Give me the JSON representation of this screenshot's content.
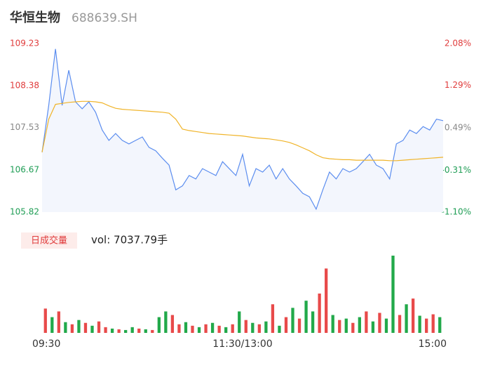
{
  "header": {
    "title": "华恒生物",
    "code": "688639.SH"
  },
  "chart_data": [
    {
      "type": "line",
      "x": [
        0,
        4,
        8,
        12,
        16,
        20,
        24,
        28,
        32,
        36,
        40,
        44,
        48,
        52,
        56,
        60,
        64,
        68,
        72,
        76,
        80,
        84,
        88,
        92,
        96,
        100,
        104,
        108,
        112,
        116,
        120,
        124,
        128,
        132,
        136,
        140,
        144,
        148,
        152,
        156,
        160,
        164,
        168,
        172,
        176,
        180,
        184,
        188,
        192,
        196,
        200,
        204,
        208,
        212,
        216,
        220,
        224,
        228,
        232,
        236,
        240
      ],
      "series": [
        {
          "color": "#5b8def",
          "fill": "#f3f6fd",
          "values": [
            107.03,
            107.98,
            109.12,
            107.98,
            108.69,
            108.05,
            107.91,
            108.05,
            107.84,
            107.48,
            107.27,
            107.41,
            107.27,
            107.2,
            107.27,
            107.34,
            107.13,
            107.06,
            106.91,
            106.77,
            106.27,
            106.35,
            106.56,
            106.49,
            106.7,
            106.63,
            106.56,
            106.84,
            106.7,
            106.56,
            106.99,
            106.35,
            106.7,
            106.63,
            106.77,
            106.49,
            106.7,
            106.49,
            106.35,
            106.2,
            106.13,
            105.88,
            106.27,
            106.63,
            106.49,
            106.7,
            106.63,
            106.7,
            106.84,
            106.99,
            106.77,
            106.7,
            106.49,
            107.2,
            107.27,
            107.48,
            107.41,
            107.55,
            107.48,
            107.7,
            107.67
          ]
        },
        {
          "color": "#f0b429",
          "values": [
            107.03,
            107.7,
            108.0,
            108.02,
            108.04,
            108.05,
            108.06,
            108.06,
            108.05,
            108.03,
            107.97,
            107.92,
            107.9,
            107.89,
            107.88,
            107.87,
            107.86,
            107.85,
            107.84,
            107.82,
            107.7,
            107.5,
            107.47,
            107.45,
            107.43,
            107.41,
            107.4,
            107.39,
            107.38,
            107.37,
            107.36,
            107.34,
            107.32,
            107.31,
            107.3,
            107.28,
            107.26,
            107.23,
            107.18,
            107.12,
            107.06,
            106.98,
            106.92,
            106.9,
            106.89,
            106.88,
            106.88,
            106.87,
            106.87,
            106.87,
            106.87,
            106.87,
            106.86,
            106.86,
            106.87,
            106.88,
            106.89,
            106.9,
            106.91,
            106.92,
            106.93
          ]
        }
      ],
      "xlim": [
        0,
        240
      ],
      "ylim": [
        105.82,
        109.23
      ],
      "yticks": [
        109.23,
        108.38,
        107.53,
        106.67,
        105.82
      ],
      "ytick_colors": [
        "#e03c3c",
        "#e03c3c",
        "#888888",
        "#1f9d55",
        "#1f9d55"
      ],
      "y2lim": [
        -1.1,
        2.08
      ],
      "y2ticks": [
        {
          "value": 2.08,
          "label": "2.08%"
        },
        {
          "value": 1.29,
          "label": "1.29%"
        },
        {
          "value": 0.49,
          "label": "0.49%"
        },
        {
          "value": -0.31,
          "label": "-0.31%"
        },
        {
          "value": -1.1,
          "label": "-1.10%"
        }
      ],
      "y2tick_colors": [
        "#e03c3c",
        "#e03c3c",
        "#888888",
        "#1f9d55",
        "#1f9d55"
      ],
      "grid": false
    },
    {
      "type": "bar",
      "label": "日成交量",
      "volume_label": "vol: 7037.79手",
      "x": [
        2,
        6,
        10,
        14,
        18,
        22,
        26,
        30,
        34,
        38,
        42,
        46,
        50,
        54,
        58,
        62,
        66,
        70,
        74,
        78,
        82,
        86,
        90,
        94,
        98,
        102,
        106,
        110,
        114,
        118,
        122,
        126,
        130,
        134,
        138,
        142,
        146,
        150,
        154,
        158,
        162,
        166,
        170,
        174,
        178,
        182,
        186,
        190,
        194,
        198,
        202,
        206,
        210,
        214,
        218,
        222,
        226,
        230,
        234,
        238
      ],
      "values": [
        34,
        22,
        30,
        15,
        12,
        18,
        14,
        10,
        16,
        8,
        6,
        5,
        4,
        8,
        6,
        5,
        4,
        22,
        30,
        25,
        12,
        15,
        10,
        8,
        12,
        14,
        10,
        8,
        12,
        30,
        18,
        14,
        12,
        16,
        40,
        10,
        22,
        35,
        20,
        45,
        30,
        55,
        90,
        25,
        18,
        20,
        14,
        22,
        30,
        16,
        28,
        20,
        108,
        25,
        40,
        48,
        24,
        20,
        26,
        22
      ],
      "colors": [
        "#e84a4a",
        "#22a94a",
        "#e84a4a",
        "#22a94a",
        "#e84a4a",
        "#22a94a",
        "#e84a4a",
        "#22a94a",
        "#e84a4a",
        "#e84a4a",
        "#22a94a",
        "#e84a4a",
        "#22a94a",
        "#22a94a",
        "#e84a4a",
        "#22a94a",
        "#e84a4a",
        "#22a94a",
        "#22a94a",
        "#e84a4a",
        "#e84a4a",
        "#22a94a",
        "#e84a4a",
        "#22a94a",
        "#e84a4a",
        "#22a94a",
        "#e84a4a",
        "#22a94a",
        "#e84a4a",
        "#22a94a",
        "#e84a4a",
        "#22a94a",
        "#e84a4a",
        "#22a94a",
        "#e84a4a",
        "#22a94a",
        "#e84a4a",
        "#22a94a",
        "#e84a4a",
        "#22a94a",
        "#22a94a",
        "#e84a4a",
        "#e84a4a",
        "#22a94a",
        "#e84a4a",
        "#22a94a",
        "#e84a4a",
        "#22a94a",
        "#e84a4a",
        "#22a94a",
        "#e84a4a",
        "#22a94a",
        "#22a94a",
        "#e84a4a",
        "#22a94a",
        "#e84a4a",
        "#22a94a",
        "#e84a4a",
        "#e84a4a",
        "#22a94a"
      ],
      "xlim": [
        0,
        240
      ],
      "xticks": [
        {
          "value": 0,
          "label": "09:30"
        },
        {
          "value": 120,
          "label": "11:30/13:00"
        },
        {
          "value": 240,
          "label": "15:00"
        }
      ]
    }
  ]
}
